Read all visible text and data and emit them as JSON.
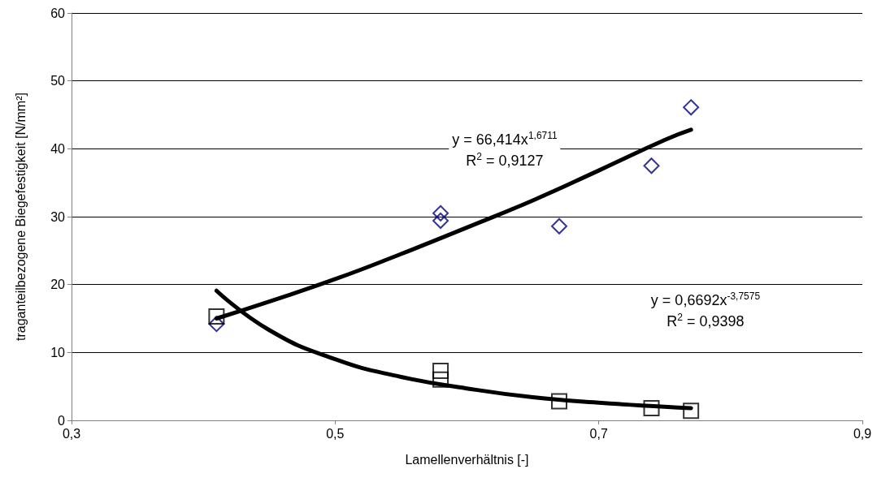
{
  "chart_data": {
    "type": "scatter",
    "xlabel": "Lamellenverhältnis [-]",
    "ylabel": "traganteilbezogene Biegefestigkeit [N/mm²]",
    "xlim": [
      0.3,
      0.9
    ],
    "xticks": [
      {
        "value": 0.3,
        "label": "0,3"
      },
      {
        "value": 0.5,
        "label": "0,5"
      },
      {
        "value": 0.7,
        "label": "0,7"
      },
      {
        "value": 0.9,
        "label": "0,9"
      }
    ],
    "ylim": [
      0,
      60
    ],
    "yticks": [
      0,
      10,
      20,
      30,
      40,
      50,
      60
    ],
    "grid": "y",
    "series": [
      {
        "marker": "diamond",
        "color": "#000080",
        "x": [
          0.41,
          0.58,
          0.58,
          0.67,
          0.74,
          0.77
        ],
        "values": [
          14.2,
          30.5,
          29.4,
          28.6,
          37.5,
          46.1
        ]
      },
      {
        "marker": "square",
        "color": "#000000",
        "x": [
          0.41,
          0.58,
          0.58,
          0.67,
          0.74,
          0.77
        ],
        "values": [
          15.3,
          7.3,
          6.0,
          2.8,
          1.8,
          1.4
        ]
      },
      {
        "type": "line",
        "marker": "none",
        "color": "#000000",
        "x": [
          0.41,
          0.45,
          0.5,
          0.55,
          0.6,
          0.65,
          0.7,
          0.75,
          0.77
        ],
        "values": [
          15.0,
          17.5,
          20.8,
          24.5,
          28.4,
          32.4,
          36.8,
          41.3,
          42.8
        ]
      },
      {
        "type": "line",
        "marker": "none",
        "color": "#000000",
        "x": [
          0.41,
          0.45,
          0.5,
          0.55,
          0.6,
          0.65,
          0.7,
          0.75,
          0.77
        ],
        "values": [
          19.1,
          13.3,
          9.0,
          6.4,
          4.7,
          3.4,
          2.6,
          2.0,
          1.8
        ]
      }
    ],
    "annotations": [
      "y = 66,414x$^{1,6711}$",
      "R$^{2}$ = 0,9127",
      "y = 0,6692x$^{-3,7575}$",
      "R$^{2}$ = 0,9398"
    ]
  }
}
